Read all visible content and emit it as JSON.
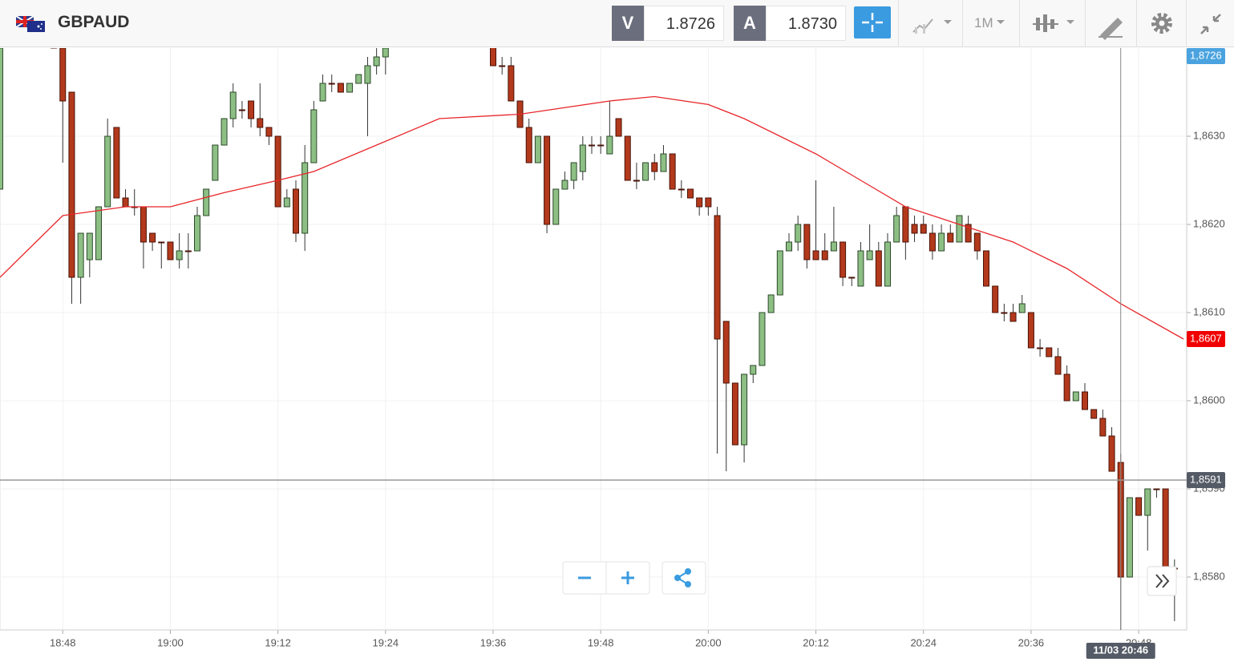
{
  "toolbar": {
    "symbol": "GBPAUD",
    "bid": {
      "label": "V",
      "price": "1.8726"
    },
    "ask": {
      "label": "A",
      "price": "1.8730"
    },
    "timeframe": "1M"
  },
  "chart_data": {
    "type": "candlestick",
    "xlim": [
      "18:41",
      "20:53"
    ],
    "xticks": [
      "18:48",
      "19:00",
      "19:12",
      "19:24",
      "19:36",
      "19:48",
      "20:00",
      "20:12",
      "20:24",
      "20:36",
      "20:48"
    ],
    "ylim": [
      1.8574,
      1.864
    ],
    "yticks": [
      {
        "value": 1.858,
        "label": "1,8580"
      },
      {
        "value": 1.859,
        "label": "1,8590"
      },
      {
        "value": 1.86,
        "label": "1,8600"
      },
      {
        "value": 1.861,
        "label": "1,8610"
      },
      {
        "value": 1.862,
        "label": "1,8620"
      },
      {
        "value": 1.863,
        "label": "1,8630"
      }
    ],
    "grid": true,
    "up_color": "#8dbf85",
    "down_color": "#b3391c",
    "candles": {
      "x": [
        "18:41",
        "18:47",
        "18:48",
        "18:49",
        "18:50",
        "18:51",
        "18:52",
        "18:53",
        "18:54",
        "18:55",
        "18:56",
        "18:57",
        "18:58",
        "18:59",
        "19:00",
        "19:01",
        "19:02",
        "19:03",
        "19:04",
        "19:05",
        "19:06",
        "19:07",
        "19:08",
        "19:09",
        "19:10",
        "19:11",
        "19:12",
        "19:13",
        "19:14",
        "19:15",
        "19:16",
        "19:17",
        "19:18",
        "19:19",
        "19:20",
        "19:21",
        "19:22",
        "19:23",
        "19:24",
        "19:36",
        "19:37",
        "19:38",
        "19:39",
        "19:40",
        "19:41",
        "19:42",
        "19:43",
        "19:44",
        "19:45",
        "19:46",
        "19:47",
        "19:48",
        "19:49",
        "19:50",
        "19:51",
        "19:52",
        "19:53",
        "19:54",
        "19:55",
        "19:56",
        "19:57",
        "19:58",
        "19:59",
        "20:00",
        "20:01",
        "20:02",
        "20:03",
        "20:04",
        "20:05",
        "20:06",
        "20:07",
        "20:08",
        "20:09",
        "20:10",
        "20:11",
        "20:12",
        "20:13",
        "20:14",
        "20:15",
        "20:16",
        "20:17",
        "20:18",
        "20:19",
        "20:20",
        "20:21",
        "20:22",
        "20:23",
        "20:24",
        "20:25",
        "20:26",
        "20:27",
        "20:28",
        "20:29",
        "20:30",
        "20:31",
        "20:32",
        "20:33",
        "20:34",
        "20:35",
        "20:36",
        "20:37",
        "20:38",
        "20:39",
        "20:40",
        "20:41",
        "20:42",
        "20:43",
        "20:44",
        "20:45",
        "20:46",
        "20:47",
        "20:48",
        "20:49",
        "20:50",
        "20:51",
        "20:52"
      ],
      "open": [
        1.8624,
        1.8641,
        1.864,
        1.8635,
        1.8614,
        1.8616,
        1.8616,
        1.8622,
        1.8631,
        1.8623,
        1.8622,
        1.8622,
        1.8619,
        1.8618,
        1.8618,
        1.8616,
        1.8617,
        1.8617,
        1.8621,
        1.8625,
        1.8629,
        1.8632,
        1.8633,
        1.8634,
        1.8632,
        1.8631,
        1.863,
        1.8622,
        1.8624,
        1.8619,
        1.8627,
        1.8634,
        1.8636,
        1.8636,
        1.8635,
        1.8636,
        1.8636,
        1.8638,
        1.8639,
        1.8641,
        1.8638,
        1.8638,
        1.8634,
        1.8631,
        1.8627,
        1.863,
        1.862,
        1.8624,
        1.8625,
        1.8626,
        1.8629,
        1.8629,
        1.8628,
        1.8632,
        1.863,
        1.8625,
        1.8625,
        1.8627,
        1.8626,
        1.8628,
        1.8624,
        1.8624,
        1.8623,
        1.8623,
        1.8621,
        1.8609,
        1.8602,
        1.8595,
        1.8603,
        1.8604,
        1.861,
        1.8612,
        1.8617,
        1.8618,
        1.862,
        1.8617,
        1.8617,
        1.8617,
        1.8618,
        1.8614,
        1.8613,
        1.8616,
        1.8617,
        1.8613,
        1.8618,
        1.8622,
        1.862,
        1.862,
        1.8619,
        1.8617,
        1.8619,
        1.8618,
        1.862,
        1.8619,
        1.8617,
        1.8613,
        1.861,
        1.861,
        1.861,
        1.861,
        1.8606,
        1.8606,
        1.8605,
        1.8603,
        1.86,
        1.8601,
        1.8599,
        1.8598,
        1.8596,
        1.8593,
        1.858,
        1.8589,
        1.8587,
        1.859,
        1.859,
        1.8581
      ],
      "high": [
        1.8641,
        1.8642,
        1.8641,
        1.8635,
        1.8619,
        1.8619,
        1.8622,
        1.8632,
        1.8631,
        1.8624,
        1.8624,
        1.8622,
        1.8619,
        1.8618,
        1.8618,
        1.8619,
        1.8619,
        1.8622,
        1.8624,
        1.8629,
        1.8632,
        1.8636,
        1.8634,
        1.8634,
        1.8636,
        1.8631,
        1.863,
        1.8624,
        1.8625,
        1.8629,
        1.8634,
        1.8637,
        1.8637,
        1.8636,
        1.8636,
        1.8637,
        1.8639,
        1.864,
        1.8641,
        1.8641,
        1.8639,
        1.8639,
        1.8634,
        1.8632,
        1.863,
        1.863,
        1.8624,
        1.8626,
        1.8627,
        1.863,
        1.863,
        1.863,
        1.8634,
        1.8632,
        1.863,
        1.8627,
        1.8627,
        1.8628,
        1.8629,
        1.8628,
        1.8625,
        1.8624,
        1.8623,
        1.8623,
        1.8622,
        1.8609,
        1.8602,
        1.8603,
        1.8604,
        1.861,
        1.8612,
        1.8617,
        1.8619,
        1.8621,
        1.862,
        1.8625,
        1.8619,
        1.8622,
        1.8618,
        1.8614,
        1.8618,
        1.862,
        1.8618,
        1.8619,
        1.8622,
        1.8622,
        1.8621,
        1.8621,
        1.862,
        1.862,
        1.862,
        1.8621,
        1.8621,
        1.8619,
        1.8617,
        1.8613,
        1.8611,
        1.8611,
        1.8612,
        1.861,
        1.8607,
        1.8606,
        1.8606,
        1.8604,
        1.8601,
        1.8602,
        1.8599,
        1.8599,
        1.8597,
        1.8594,
        1.8589,
        1.8589,
        1.859,
        1.859,
        1.859,
        1.8582
      ],
      "low": [
        1.8624,
        1.864,
        1.8627,
        1.8611,
        1.8611,
        1.8614,
        1.8616,
        1.8622,
        1.8623,
        1.8622,
        1.8621,
        1.8615,
        1.8617,
        1.8615,
        1.8616,
        1.8615,
        1.8615,
        1.8617,
        1.8621,
        1.8625,
        1.8629,
        1.8631,
        1.8632,
        1.8631,
        1.863,
        1.8629,
        1.8622,
        1.8622,
        1.8618,
        1.8617,
        1.8627,
        1.8634,
        1.8635,
        1.8635,
        1.8635,
        1.8636,
        1.863,
        1.8637,
        1.8637,
        1.8638,
        1.8637,
        1.8634,
        1.8631,
        1.8627,
        1.8627,
        1.8619,
        1.862,
        1.8624,
        1.8624,
        1.8625,
        1.8628,
        1.8628,
        1.8628,
        1.863,
        1.8625,
        1.8624,
        1.8625,
        1.8625,
        1.8626,
        1.8624,
        1.8623,
        1.8623,
        1.8621,
        1.8621,
        1.8594,
        1.8592,
        1.8595,
        1.8593,
        1.8602,
        1.8604,
        1.861,
        1.8612,
        1.8617,
        1.8617,
        1.8615,
        1.8616,
        1.8616,
        1.8617,
        1.8613,
        1.8613,
        1.8613,
        1.8616,
        1.8613,
        1.8613,
        1.8618,
        1.8616,
        1.8618,
        1.8619,
        1.8616,
        1.8617,
        1.8618,
        1.8618,
        1.8618,
        1.8616,
        1.8613,
        1.861,
        1.8609,
        1.8609,
        1.861,
        1.8606,
        1.8605,
        1.8605,
        1.8603,
        1.86,
        1.86,
        1.8599,
        1.8598,
        1.8596,
        1.8592,
        1.8574,
        1.858,
        1.8587,
        1.8583,
        1.8589,
        1.858,
        1.8575
      ],
      "close": [
        1.864,
        1.864,
        1.8634,
        1.8614,
        1.8619,
        1.8619,
        1.8622,
        1.863,
        1.8623,
        1.8622,
        1.8622,
        1.8618,
        1.8618,
        1.8618,
        1.8616,
        1.8617,
        1.8617,
        1.8621,
        1.8624,
        1.8629,
        1.8632,
        1.8635,
        1.8633,
        1.8632,
        1.8631,
        1.863,
        1.8622,
        1.8623,
        1.8619,
        1.8627,
        1.8633,
        1.8636,
        1.8636,
        1.8635,
        1.8636,
        1.8637,
        1.8638,
        1.8639,
        1.864,
        1.8638,
        1.8638,
        1.8634,
        1.8631,
        1.8627,
        1.863,
        1.862,
        1.8624,
        1.8625,
        1.8627,
        1.8629,
        1.8629,
        1.8629,
        1.863,
        1.863,
        1.8625,
        1.8625,
        1.8627,
        1.8626,
        1.8628,
        1.8624,
        1.8624,
        1.8623,
        1.8622,
        1.8622,
        1.8607,
        1.8602,
        1.8595,
        1.8603,
        1.8604,
        1.861,
        1.8612,
        1.8617,
        1.8618,
        1.862,
        1.8616,
        1.8616,
        1.8616,
        1.8618,
        1.8614,
        1.8614,
        1.8617,
        1.8617,
        1.8613,
        1.8618,
        1.8621,
        1.8618,
        1.8619,
        1.8619,
        1.8617,
        1.8619,
        1.8618,
        1.8621,
        1.8618,
        1.8617,
        1.8613,
        1.861,
        1.861,
        1.8609,
        1.8611,
        1.8606,
        1.8606,
        1.8605,
        1.8603,
        1.86,
        1.8601,
        1.8599,
        1.8598,
        1.8596,
        1.8592,
        1.858,
        1.8589,
        1.8587,
        1.859,
        1.859,
        1.8581,
        1.8581
      ]
    },
    "moving_average": {
      "color": "#e8262a",
      "x": [
        "18:41",
        "18:48",
        "18:55",
        "19:00",
        "19:06",
        "19:12",
        "19:16",
        "19:23",
        "19:30",
        "19:39",
        "19:49",
        "19:54",
        "20:00",
        "20:04",
        "20:12",
        "20:17",
        "20:22",
        "20:28",
        "20:34",
        "20:40",
        "20:46",
        "20:53"
      ],
      "values": [
        1.8614,
        1.8621,
        1.8622,
        1.8622,
        1.86236,
        1.8625,
        1.8626,
        1.8629,
        1.8632,
        1.86325,
        1.8634,
        1.86345,
        1.86336,
        1.8632,
        1.8628,
        1.8625,
        1.8622,
        1.862,
        1.8618,
        1.8615,
        1.8611,
        1.8607
      ]
    },
    "price_markers": [
      {
        "value": 1.8726,
        "label": "1,8726",
        "color": "#4aa3df"
      },
      {
        "value": 1.8607,
        "label": "1,8607",
        "color": "#f00000"
      }
    ],
    "crosshair": {
      "price": {
        "value": 1.8591,
        "label": "1,8591"
      },
      "time": "11/03 20:46"
    }
  }
}
